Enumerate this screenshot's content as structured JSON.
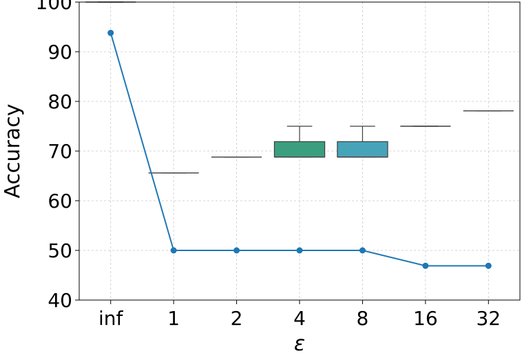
{
  "chart_data": {
    "type": "box+line",
    "xlabel": "ε",
    "ylabel": "Accuracy",
    "categories": [
      "inf",
      "1",
      "2",
      "4",
      "8",
      "16",
      "32"
    ],
    "ylim": [
      40,
      100
    ],
    "yticks": [
      40,
      50,
      60,
      70,
      80,
      90,
      100
    ],
    "grid": true,
    "boxes": [
      {
        "category": "inf",
        "q1": 100,
        "median": 100,
        "q3": 100,
        "whisker_low": 100,
        "whisker_high": 100,
        "color": "#1f3f6e"
      },
      {
        "category": "1",
        "q1": 65.6,
        "median": 65.6,
        "q3": 65.6,
        "whisker_low": 65.6,
        "whisker_high": 65.6,
        "color": "#2d5b8a"
      },
      {
        "category": "2",
        "q1": 68.8,
        "median": 68.8,
        "q3": 68.8,
        "whisker_low": 68.8,
        "whisker_high": 68.8,
        "color": "#2e7d8e"
      },
      {
        "category": "4",
        "q1": 68.8,
        "median": 68.8,
        "q3": 71.9,
        "whisker_low": 68.8,
        "whisker_high": 75.0,
        "color": "#3a9e7f"
      },
      {
        "category": "8",
        "q1": 68.8,
        "median": 68.8,
        "q3": 71.9,
        "whisker_low": 68.8,
        "whisker_high": 75.0,
        "color": "#46a3b8"
      },
      {
        "category": "16",
        "q1": 75.0,
        "median": 75.0,
        "q3": 75.0,
        "whisker_low": 75.0,
        "whisker_high": 75.0,
        "color": "#4cb8a0"
      },
      {
        "category": "32",
        "q1": 78.1,
        "median": 78.1,
        "q3": 78.1,
        "whisker_low": 78.1,
        "whisker_high": 78.1,
        "color": "#6cc98a"
      }
    ],
    "line": {
      "color": "#1f77b4",
      "values": [
        93.8,
        50.0,
        50.0,
        50.0,
        50.0,
        46.9,
        46.9
      ]
    }
  }
}
